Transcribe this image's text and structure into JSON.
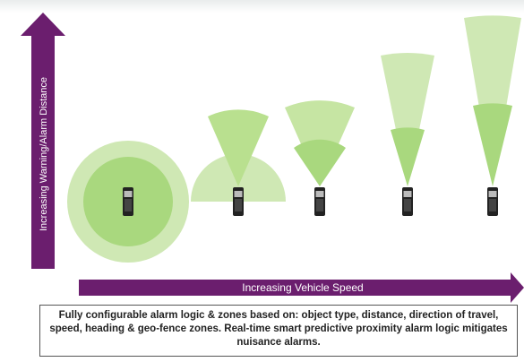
{
  "axes": {
    "y_label": "Increasing Warning/Alarm Distance",
    "x_label": "Increasing Vehicle Speed"
  },
  "caption": "Fully configurable alarm logic & zones based on: object type, distance, direction of travel, speed, heading & geo-fence zones. Real-time smart predictive proximity alarm logic mitigates nuisance alarms."
}
